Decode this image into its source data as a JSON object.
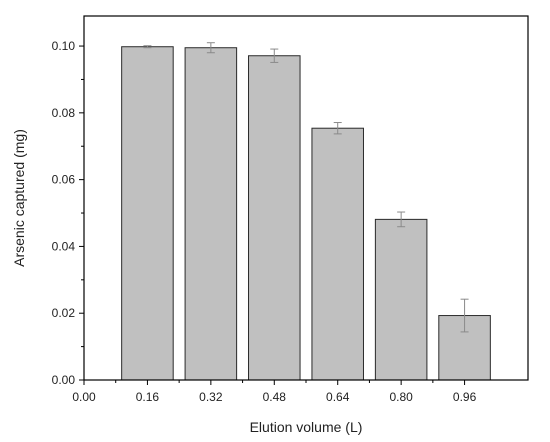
{
  "chart_data": {
    "type": "bar",
    "xlabel": "Elution volume (L)",
    "ylabel": "Arsenic captured (mg)",
    "x_ticks": [
      "0.00",
      "0.16",
      "0.32",
      "0.48",
      "0.64",
      "0.80",
      "0.96"
    ],
    "xlim": [
      0.0,
      1.12
    ],
    "y_ticks": [
      "0.00",
      "0.02",
      "0.04",
      "0.06",
      "0.08",
      "0.10"
    ],
    "ylim": [
      0.0,
      0.109
    ],
    "x": [
      0.16,
      0.32,
      0.48,
      0.64,
      0.8,
      0.96
    ],
    "values": [
      0.0998,
      0.0995,
      0.0971,
      0.0754,
      0.0481,
      0.0193
    ],
    "errors": [
      0.0003,
      0.0015,
      0.002,
      0.0017,
      0.0022,
      0.0049
    ],
    "bar_width": 0.13,
    "grid": false,
    "colors": {
      "bar_fill": "#c0c0c0",
      "bar_stroke": "#2a2a2a",
      "error_bar": "#8a8a8a",
      "axis": "#000000"
    }
  }
}
